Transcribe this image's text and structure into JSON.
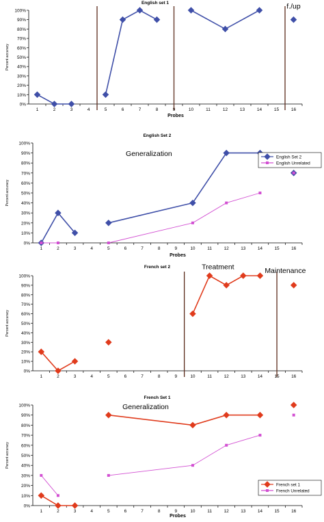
{
  "chart_data": [
    {
      "type": "line",
      "title": "English set 1",
      "xlabel": "Probes",
      "ylabel": "Percent accuracy",
      "x_ticks": [
        "1",
        "2",
        "3",
        "4",
        "5",
        "6",
        "7",
        "8",
        "9",
        "10",
        "11",
        "12",
        "13",
        "14",
        "15",
        "16"
      ],
      "y_ticks": [
        "0%",
        "10%",
        "20%",
        "30%",
        "40%",
        "50%",
        "60%",
        "70%",
        "80%",
        "90%",
        "100%"
      ],
      "ylim": [
        0,
        100
      ],
      "phase_lines_after_probe": [
        4,
        8.5,
        15
      ],
      "annotations": [
        {
          "text": "f./up",
          "probe": 16,
          "level": 102
        }
      ],
      "series": [
        {
          "color": "#3f4fa8",
          "marker": "diamond",
          "segments": [
            [
              [
                1,
                10
              ],
              [
                2,
                0
              ],
              [
                3,
                0
              ]
            ],
            [
              [
                5,
                10
              ],
              [
                6,
                90
              ],
              [
                7,
                100
              ],
              [
                8,
                90
              ]
            ],
            [
              [
                10,
                100
              ],
              [
                12,
                80
              ],
              [
                14,
                100
              ]
            ],
            [
              [
                16,
                90
              ]
            ]
          ]
        }
      ]
    },
    {
      "type": "line",
      "title": "English Set 2",
      "xlabel": "Probes",
      "ylabel": "Percent accuracy",
      "x_ticks": [
        "1",
        "2",
        "3",
        "4",
        "5",
        "6",
        "7",
        "8",
        "9",
        "10",
        "11",
        "12",
        "13",
        "14",
        "15",
        "16"
      ],
      "y_ticks": [
        "0%",
        "10%",
        "20%",
        "30%",
        "40%",
        "50%",
        "60%",
        "70%",
        "80%",
        "90%",
        "100%"
      ],
      "ylim": [
        0,
        100
      ],
      "phase_lines_after_probe": [],
      "annotations": [
        {
          "text": "Generalization",
          "probe": 7.4,
          "level": 87
        }
      ],
      "legend": {
        "placement": "top-right",
        "entries": [
          "English Set 2",
          "English Unrelated"
        ]
      },
      "series": [
        {
          "name": "English Set 2",
          "color": "#3f4fa8",
          "marker": "diamond",
          "segments": [
            [
              [
                1,
                0
              ],
              [
                2,
                30
              ],
              [
                3,
                10
              ]
            ],
            [
              [
                5,
                20
              ],
              [
                10,
                40
              ],
              [
                12,
                90
              ],
              [
                14,
                90
              ]
            ],
            [
              [
                16,
                70
              ]
            ]
          ]
        },
        {
          "name": "English Unrelated",
          "color": "#d24fd2",
          "marker": "square",
          "segments": [
            [
              [
                1,
                0
              ],
              [
                2,
                0
              ]
            ],
            [
              [
                5,
                0
              ],
              [
                10,
                20
              ],
              [
                12,
                40
              ],
              [
                14,
                50
              ]
            ],
            [
              [
                16,
                70
              ]
            ]
          ]
        }
      ]
    },
    {
      "type": "line",
      "title": "French set 2",
      "xlabel": "",
      "ylabel": "Percent accuracy",
      "x_ticks": [
        "1",
        "2",
        "3",
        "4",
        "5",
        "6",
        "7",
        "8",
        "9",
        "10",
        "11",
        "12",
        "13",
        "14",
        "15",
        "16"
      ],
      "y_ticks": [
        "0%",
        "10%",
        "20%",
        "30%",
        "40%",
        "50%",
        "60%",
        "70%",
        "80%",
        "90%",
        "100%"
      ],
      "ylim": [
        0,
        100
      ],
      "phase_lines_after_probe": [
        9,
        14.5
      ],
      "annotations": [
        {
          "text": "Treatment",
          "probe": 11.5,
          "level": 107
        },
        {
          "text": "Maintenance",
          "probe": 15.5,
          "level": 103
        }
      ],
      "series": [
        {
          "color": "#e03b1c",
          "marker": "diamond",
          "segments": [
            [
              [
                1,
                20
              ],
              [
                2,
                0
              ],
              [
                3,
                10
              ]
            ],
            [
              [
                5,
                30
              ]
            ],
            [
              [
                10,
                60
              ],
              [
                11,
                100
              ],
              [
                12,
                90
              ],
              [
                13,
                100
              ],
              [
                14,
                100
              ]
            ],
            [
              [
                16,
                90
              ]
            ]
          ]
        }
      ]
    },
    {
      "type": "line",
      "title": "French Set 1",
      "xlabel": "Probes",
      "ylabel": "Percent accuracy",
      "x_ticks": [
        "1",
        "2",
        "3",
        "4",
        "5",
        "6",
        "7",
        "8",
        "9",
        "10",
        "11",
        "12",
        "13",
        "14",
        "15",
        "16"
      ],
      "y_ticks": [
        "0%",
        "10%",
        "20%",
        "30%",
        "40%",
        "50%",
        "60%",
        "70%",
        "80%",
        "90%",
        "100%"
      ],
      "ylim": [
        0,
        100
      ],
      "phase_lines_after_probe": [],
      "annotations": [
        {
          "text": "Generalization",
          "probe": 7.2,
          "level": 96
        }
      ],
      "legend": {
        "placement": "bottom-right",
        "entries": [
          "French set 1",
          "French  Unrelated"
        ]
      },
      "series": [
        {
          "name": "French set 1",
          "color": "#e03b1c",
          "marker": "diamond",
          "segments": [
            [
              [
                1,
                10
              ],
              [
                2,
                0
              ],
              [
                3,
                0
              ]
            ],
            [
              [
                5,
                90
              ],
              [
                10,
                80
              ],
              [
                12,
                90
              ],
              [
                14,
                90
              ]
            ],
            [
              [
                16,
                100
              ]
            ]
          ]
        },
        {
          "name": "French  Unrelated",
          "color": "#d24fd2",
          "marker": "square",
          "segments": [
            [
              [
                1,
                30
              ],
              [
                2,
                10
              ]
            ],
            [
              [
                5,
                30
              ],
              [
                10,
                40
              ],
              [
                12,
                60
              ],
              [
                14,
                70
              ]
            ],
            [
              [
                16,
                90
              ]
            ]
          ]
        }
      ]
    }
  ]
}
